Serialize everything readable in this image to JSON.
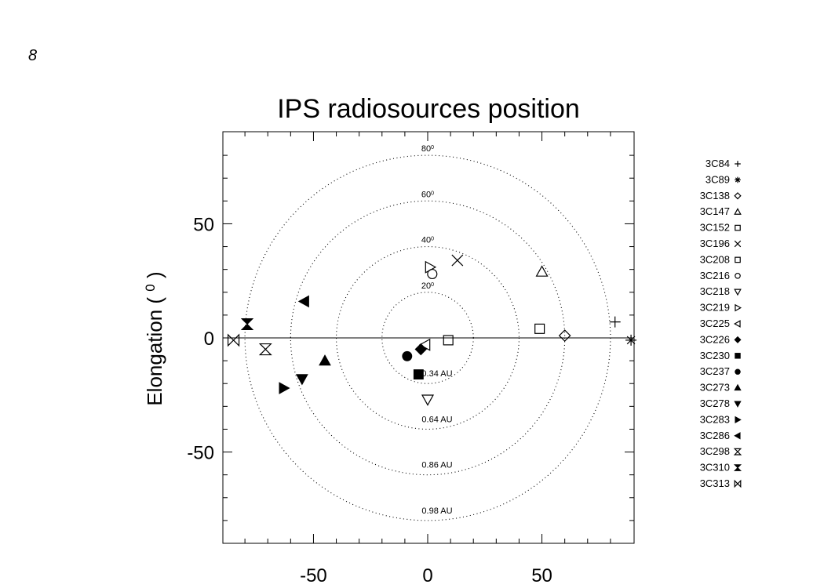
{
  "page_label": "8",
  "chart_data": {
    "type": "scatter",
    "title": "IPS radiosources position",
    "ylabel": "Elongation ( ",
    "ylabel_superscript": "0",
    "ylabel_close": ")",
    "xlabel": "",
    "xlim": [
      -90,
      90
    ],
    "ylim": [
      -92,
      92
    ],
    "xticks": [
      -50,
      0,
      50
    ],
    "yticks": [
      -50,
      0,
      50
    ],
    "elongation_circles": [
      {
        "radius": 20,
        "elong_label": "20",
        "au_label": "0.34 AU"
      },
      {
        "radius": 40,
        "elong_label": "40",
        "au_label": "0.64 AU"
      },
      {
        "radius": 60,
        "elong_label": "60",
        "au_label": "0.86 AU"
      },
      {
        "radius": 80,
        "elong_label": "80",
        "au_label": "0.98 AU"
      }
    ],
    "degree_symbol": "0",
    "series": [
      {
        "name": "3C84",
        "symbol": "plus",
        "x": 82,
        "y": 7
      },
      {
        "name": "3C89",
        "symbol": "asterisk",
        "x": 89,
        "y": -1
      },
      {
        "name": "3C138",
        "symbol": "diamond-open",
        "x": 60,
        "y": 1
      },
      {
        "name": "3C147",
        "symbol": "triangle-up-open",
        "x": 50,
        "y": 29
      },
      {
        "name": "3C152",
        "symbol": "square-open",
        "x": 49,
        "y": 4
      },
      {
        "name": "3C196",
        "symbol": "x",
        "x": 13,
        "y": 34
      },
      {
        "name": "3C208",
        "symbol": "square-open",
        "x": 9,
        "y": -1
      },
      {
        "name": "3C216",
        "symbol": "circle-open",
        "x": 2,
        "y": 28
      },
      {
        "name": "3C218",
        "symbol": "triangle-down-open",
        "x": 0,
        "y": -27
      },
      {
        "name": "3C219",
        "symbol": "triangle-right-open",
        "x": 1,
        "y": 31
      },
      {
        "name": "3C225",
        "symbol": "triangle-left-open",
        "x": -1,
        "y": -3
      },
      {
        "name": "3C226",
        "symbol": "diamond-filled",
        "x": -3,
        "y": -5
      },
      {
        "name": "3C230",
        "symbol": "square-filled",
        "x": -4,
        "y": -16
      },
      {
        "name": "3C237",
        "symbol": "circle-filled",
        "x": -9,
        "y": -8
      },
      {
        "name": "3C273",
        "symbol": "triangle-up-filled",
        "x": -45,
        "y": -10
      },
      {
        "name": "3C278",
        "symbol": "triangle-down-filled",
        "x": -55,
        "y": -18
      },
      {
        "name": "3C283",
        "symbol": "triangle-right-filled",
        "x": -63,
        "y": -22
      },
      {
        "name": "3C286",
        "symbol": "triangle-left-filled",
        "x": -54,
        "y": 16
      },
      {
        "name": "3C298",
        "symbol": "hourglass-open",
        "x": -71,
        "y": -5
      },
      {
        "name": "3C310",
        "symbol": "hourglass-filled",
        "x": -79,
        "y": 6
      },
      {
        "name": "3C313",
        "symbol": "bowtie-open",
        "x": -85,
        "y": -1
      }
    ],
    "grid": false,
    "legend_position": "right"
  }
}
